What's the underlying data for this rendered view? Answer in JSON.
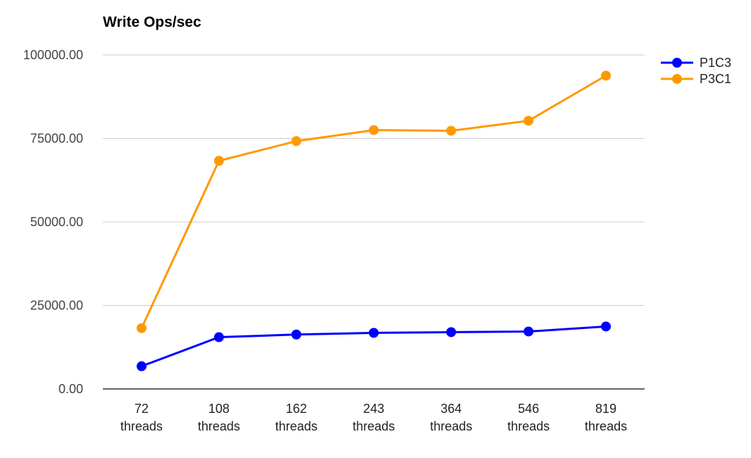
{
  "chart_data": {
    "type": "line",
    "title": "Write Ops/sec",
    "xlabel": "",
    "ylabel": "",
    "categories": [
      [
        "72",
        "threads"
      ],
      [
        "108",
        "threads"
      ],
      [
        "162",
        "threads"
      ],
      [
        "243",
        "threads"
      ],
      [
        "364",
        "threads"
      ],
      [
        "546",
        "threads"
      ],
      [
        "819",
        "threads"
      ]
    ],
    "ylim": [
      0,
      100000
    ],
    "y_ticks": [
      0,
      25000,
      50000,
      75000,
      100000
    ],
    "y_tick_labels": [
      "0.00",
      "25000.00",
      "50000.00",
      "75000.00",
      "100000.00"
    ],
    "grid": true,
    "legend_position": "right",
    "series": [
      {
        "name": "P1C3",
        "color": "#0000ff",
        "values": [
          6800,
          15500,
          16300,
          16800,
          17000,
          17200,
          18700
        ]
      },
      {
        "name": "P3C1",
        "color": "#ff9900",
        "values": [
          18200,
          68300,
          74200,
          77500,
          77300,
          80300,
          93800
        ]
      }
    ]
  }
}
